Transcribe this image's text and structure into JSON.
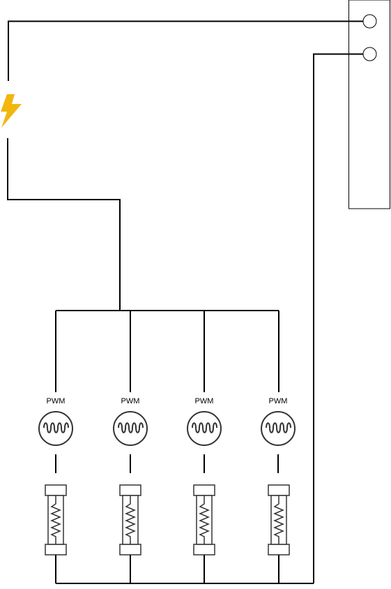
{
  "colors": {
    "wire": "#000000",
    "component_stroke": "#333333",
    "lightning": "#F2B60F",
    "background": "#ffffff"
  },
  "icons": {
    "power_source": "lightning-bolt-icon",
    "connector": "terminal-block-icon",
    "pwm_controller": "pwm-wave-icon",
    "heater": "fuse-heater-icon"
  },
  "channels": [
    {
      "label": "PWM"
    },
    {
      "label": "PWM"
    },
    {
      "label": "PWM"
    },
    {
      "label": "PWM"
    }
  ]
}
